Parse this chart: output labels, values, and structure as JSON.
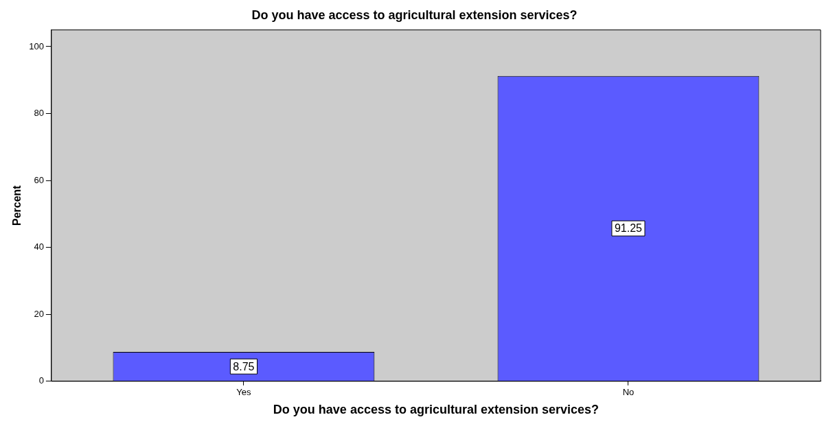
{
  "chart_data": {
    "type": "bar",
    "title": "Do you have access to agricultural extension services?",
    "xlabel": "Do you have access to agricultural extension services?",
    "ylabel": "Percent",
    "categories": [
      "Yes",
      "No"
    ],
    "values": [
      8.75,
      91.25
    ],
    "color": "#5b5bff",
    "ylim": [
      0,
      105
    ],
    "yticks": [
      0,
      20,
      40,
      60,
      80,
      100
    ],
    "grid": false,
    "legend": false,
    "data_labels": true
  }
}
